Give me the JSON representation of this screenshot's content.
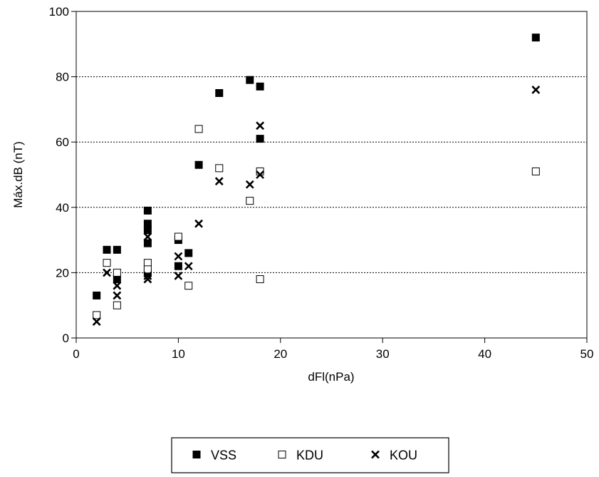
{
  "chart_data": {
    "type": "scatter",
    "xlabel": "dFl(nPa)",
    "ylabel": "Máx.dB (nT)",
    "xlim": [
      0,
      50
    ],
    "ylim": [
      0,
      100
    ],
    "xticks": [
      0,
      10,
      20,
      30,
      40,
      50
    ],
    "yticks": [
      0,
      20,
      40,
      60,
      80,
      100
    ],
    "grid": "horizontal dotted lines at 20, 40, 60, 80",
    "legend_position": "bottom-center",
    "series": [
      {
        "name": "VSS",
        "marker": "filled-square",
        "color": "#000000",
        "points": [
          [
            2,
            13
          ],
          [
            3,
            27
          ],
          [
            4,
            27
          ],
          [
            4,
            18
          ],
          [
            7,
            39
          ],
          [
            7,
            35
          ],
          [
            7,
            33
          ],
          [
            7,
            29
          ],
          [
            7,
            20
          ],
          [
            10,
            30
          ],
          [
            10,
            22
          ],
          [
            11,
            26
          ],
          [
            12,
            53
          ],
          [
            14,
            75
          ],
          [
            17,
            79
          ],
          [
            18,
            77
          ],
          [
            18,
            61
          ],
          [
            45,
            92
          ]
        ]
      },
      {
        "name": "KDU",
        "marker": "hollow-square",
        "color": "#000000",
        "points": [
          [
            2,
            7
          ],
          [
            3,
            23
          ],
          [
            4,
            20
          ],
          [
            4,
            10
          ],
          [
            7,
            23
          ],
          [
            7,
            21
          ],
          [
            10,
            31
          ],
          [
            11,
            16
          ],
          [
            12,
            64
          ],
          [
            14,
            52
          ],
          [
            17,
            42
          ],
          [
            18,
            51
          ],
          [
            18,
            18
          ],
          [
            45,
            51
          ]
        ]
      },
      {
        "name": "KOU",
        "marker": "x",
        "color": "#000000",
        "points": [
          [
            2,
            5
          ],
          [
            3,
            20
          ],
          [
            4,
            16
          ],
          [
            4,
            13
          ],
          [
            7,
            31
          ],
          [
            7,
            19
          ],
          [
            7,
            18
          ],
          [
            10,
            25
          ],
          [
            10,
            19
          ],
          [
            11,
            22
          ],
          [
            12,
            35
          ],
          [
            14,
            48
          ],
          [
            17,
            47
          ],
          [
            18,
            65
          ],
          [
            18,
            50
          ],
          [
            45,
            76
          ]
        ]
      }
    ]
  }
}
